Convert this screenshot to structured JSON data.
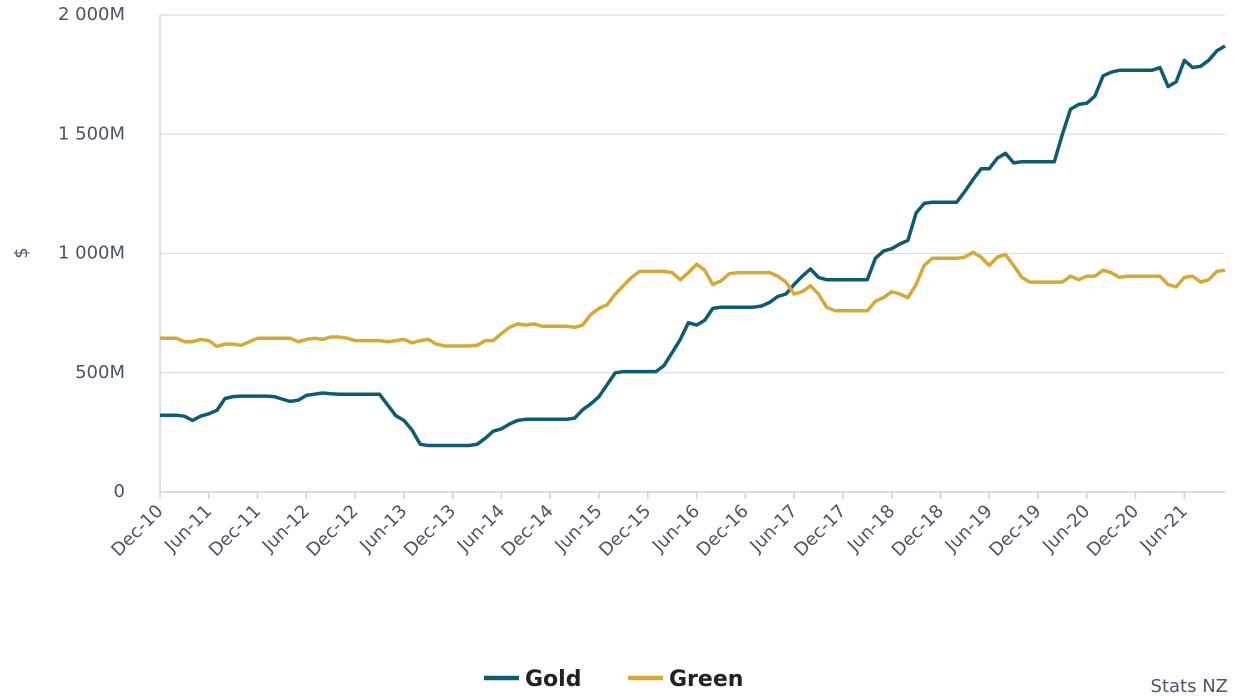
{
  "chart_data": {
    "type": "line",
    "y_label": "$",
    "source": "Stats NZ",
    "categories": [
      "Dec-10",
      null,
      null,
      null,
      null,
      null,
      "Jun-11",
      null,
      null,
      null,
      null,
      null,
      "Dec-11",
      null,
      null,
      null,
      null,
      null,
      "Jun-12",
      null,
      null,
      null,
      null,
      null,
      "Dec-12",
      null,
      null,
      null,
      null,
      null,
      "Jun-13",
      null,
      null,
      null,
      null,
      null,
      "Dec-13",
      null,
      null,
      null,
      null,
      null,
      "Jun-14",
      null,
      null,
      null,
      null,
      null,
      "Dec-14",
      null,
      null,
      null,
      null,
      null,
      "Jun-15",
      null,
      null,
      null,
      null,
      null,
      "Dec-15",
      null,
      null,
      null,
      null,
      null,
      "Jun-16",
      null,
      null,
      null,
      null,
      null,
      "Dec-16",
      null,
      null,
      null,
      null,
      null,
      "Jun-17",
      null,
      null,
      null,
      null,
      null,
      "Dec-17",
      null,
      null,
      null,
      null,
      null,
      "Jun-18",
      null,
      null,
      null,
      null,
      null,
      "Dec-18",
      null,
      null,
      null,
      null,
      null,
      "Jun-19",
      null,
      null,
      null,
      null,
      null,
      "Dec-19",
      null,
      null,
      null,
      null,
      null,
      "Jun-20",
      null,
      null,
      null,
      null,
      null,
      "Dec-20",
      null,
      null,
      null,
      null,
      null,
      "Jun-21",
      null,
      null,
      null,
      null,
      null
    ],
    "series": [
      {
        "name": "Gold",
        "color": "#0f5c72",
        "values": [
          322000000,
          322000000,
          322000000,
          318000000,
          300000000,
          318000000,
          328000000,
          342000000,
          392000000,
          400000000,
          402000000,
          402000000,
          402000000,
          402000000,
          400000000,
          390000000,
          380000000,
          385000000,
          405000000,
          410000000,
          415000000,
          412000000,
          410000000,
          410000000,
          410000000,
          410000000,
          410000000,
          410000000,
          365000000,
          320000000,
          300000000,
          260000000,
          200000000,
          195000000,
          195000000,
          195000000,
          195000000,
          195000000,
          195000000,
          200000000,
          225000000,
          255000000,
          265000000,
          285000000,
          300000000,
          305000000,
          305000000,
          305000000,
          305000000,
          305000000,
          305000000,
          310000000,
          345000000,
          370000000,
          400000000,
          450000000,
          500000000,
          505000000,
          505000000,
          505000000,
          505000000,
          505000000,
          530000000,
          585000000,
          640000000,
          710000000,
          700000000,
          720000000,
          770000000,
          775000000,
          775000000,
          775000000,
          775000000,
          775000000,
          780000000,
          795000000,
          820000000,
          830000000,
          870000000,
          905000000,
          935000000,
          900000000,
          890000000,
          890000000,
          890000000,
          890000000,
          890000000,
          890000000,
          980000000,
          1010000000,
          1020000000,
          1040000000,
          1055000000,
          1170000000,
          1210000000,
          1215000000,
          1215000000,
          1215000000,
          1215000000,
          1260000000,
          1310000000,
          1355000000,
          1355000000,
          1400000000,
          1420000000,
          1380000000,
          1385000000,
          1385000000,
          1385000000,
          1385000000,
          1385000000,
          1500000000,
          1605000000,
          1625000000,
          1630000000,
          1660000000,
          1745000000,
          1760000000,
          1768000000,
          1768000000,
          1768000000,
          1768000000,
          1768000000,
          1780000000,
          1700000000,
          1720000000,
          1810000000,
          1780000000,
          1785000000,
          1810000000,
          1850000000,
          1870000000
        ]
      },
      {
        "name": "Green",
        "color": "#d4a937",
        "values": [
          645000000,
          645000000,
          645000000,
          630000000,
          630000000,
          640000000,
          635000000,
          610000000,
          620000000,
          620000000,
          615000000,
          630000000,
          645000000,
          645000000,
          645000000,
          645000000,
          645000000,
          630000000,
          640000000,
          645000000,
          640000000,
          650000000,
          650000000,
          645000000,
          635000000,
          635000000,
          635000000,
          635000000,
          630000000,
          635000000,
          640000000,
          625000000,
          635000000,
          640000000,
          620000000,
          612000000,
          612000000,
          612000000,
          612000000,
          615000000,
          635000000,
          635000000,
          665000000,
          690000000,
          705000000,
          700000000,
          705000000,
          695000000,
          695000000,
          695000000,
          695000000,
          690000000,
          700000000,
          745000000,
          770000000,
          785000000,
          830000000,
          865000000,
          900000000,
          925000000,
          925000000,
          925000000,
          925000000,
          920000000,
          890000000,
          920000000,
          955000000,
          930000000,
          870000000,
          885000000,
          915000000,
          920000000,
          920000000,
          920000000,
          920000000,
          920000000,
          905000000,
          880000000,
          830000000,
          840000000,
          865000000,
          830000000,
          775000000,
          760000000,
          760000000,
          760000000,
          760000000,
          760000000,
          800000000,
          815000000,
          840000000,
          830000000,
          815000000,
          870000000,
          950000000,
          980000000,
          980000000,
          980000000,
          980000000,
          985000000,
          1005000000,
          985000000,
          950000000,
          985000000,
          995000000,
          950000000,
          900000000,
          880000000,
          880000000,
          880000000,
          880000000,
          880000000,
          905000000,
          890000000,
          905000000,
          905000000,
          930000000,
          920000000,
          900000000,
          905000000,
          905000000,
          905000000,
          905000000,
          905000000,
          870000000,
          860000000,
          900000000,
          905000000,
          880000000,
          890000000,
          925000000,
          930000000
        ]
      }
    ],
    "ylim": [
      0,
      2000000000
    ],
    "yticks": [
      0,
      {
        "value": 500000000,
        "label": "500M"
      },
      {
        "value": 1000000000,
        "label": "1 000M"
      },
      {
        "value": 1500000000,
        "label": "1 500M"
      },
      {
        "value": 2000000000,
        "label": "2 000M"
      }
    ],
    "grid": true,
    "legend": "bottom"
  }
}
